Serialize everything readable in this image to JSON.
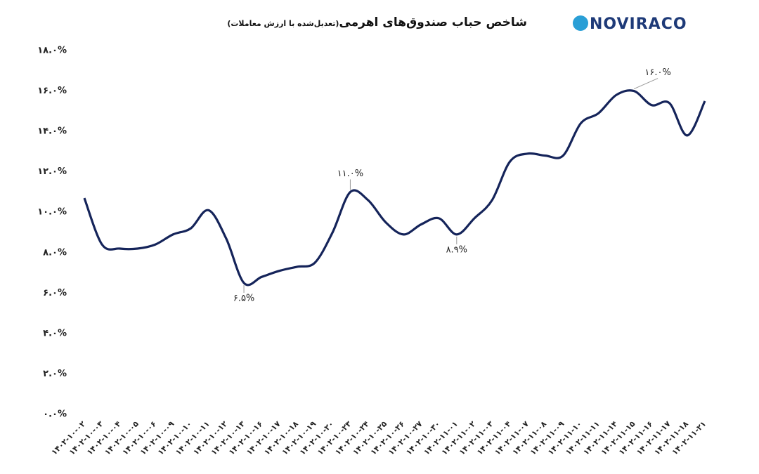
{
  "chart_data": {
    "type": "line",
    "title": "شاخص حباب صندوق‌های اهرمی",
    "subtitle": "(تعدیل‌شده با ارزش معاملات)",
    "logo": "NOVIRACO",
    "categories": [
      "۱۴۰۲-۱۰-۰۲",
      "۱۴۰۲-۱۰-۰۳",
      "۱۴۰۲-۱۰-۰۴",
      "۱۴۰۲-۱۰-۰۵",
      "۱۴۰۲-۱۰-۰۶",
      "۱۴۰۲-۱۰-۰۹",
      "۱۴۰۲-۱۰-۱۰",
      "۱۴۰۲-۱۰-۱۱",
      "۱۴۰۲-۱۰-۱۲",
      "۱۴۰۲-۱۰-۱۳",
      "۱۴۰۲-۱۰-۱۶",
      "۱۴۰۲-۱۰-۱۷",
      "۱۴۰۲-۱۰-۱۸",
      "۱۴۰۲-۱۰-۱۹",
      "۱۴۰۲-۱۰-۲۰",
      "۱۴۰۲-۱۰-۲۳",
      "۱۴۰۲-۱۰-۲۴",
      "۱۴۰۲-۱۰-۲۵",
      "۱۴۰۲-۱۰-۲۶",
      "۱۴۰۲-۱۰-۲۷",
      "۱۴۰۲-۱۰-۳۰",
      "۱۴۰۲-۱۱-۰۱",
      "۱۴۰۲-۱۱-۰۲",
      "۱۴۰۲-۱۱-۰۳",
      "۱۴۰۲-۱۱-۰۴",
      "۱۴۰۲-۱۱-۰۷",
      "۱۴۰۲-۱۱-۰۸",
      "۱۴۰۲-۱۱-۰۹",
      "۱۴۰۲-۱۱-۱۰",
      "۱۴۰۲-۱۱-۱۱",
      "۱۴۰۲-۱۱-۱۴",
      "۱۴۰۲-۱۱-۱۵",
      "۱۴۰۲-۱۱-۱۶",
      "۱۴۰۲-۱۱-۱۷",
      "۱۴۰۲-۱۱-۱۸",
      "۱۴۰۲-۱۱-۲۱"
    ],
    "series": [
      {
        "color": "#15245a",
        "values": [
          10.7,
          8.4,
          8.2,
          8.2,
          8.4,
          8.9,
          9.2,
          10.1,
          8.7,
          6.5,
          6.8,
          7.1,
          7.3,
          7.5,
          9.0,
          11.0,
          10.6,
          9.5,
          8.9,
          9.4,
          9.7,
          8.9,
          9.7,
          10.6,
          12.5,
          12.9,
          12.8,
          12.8,
          14.4,
          14.9,
          15.8,
          16.0,
          15.3,
          15.4,
          13.8,
          15.5
        ],
        "value_labels": [
          null,
          null,
          null,
          null,
          null,
          null,
          null,
          null,
          null,
          "۶.۵%",
          null,
          null,
          null,
          null,
          null,
          "۱۱.۰%",
          null,
          null,
          null,
          null,
          null,
          "۸.۹%",
          null,
          null,
          null,
          null,
          null,
          null,
          null,
          null,
          null,
          "۱۶.۰%",
          null,
          null,
          null,
          null
        ]
      }
    ],
    "ylim": [
      0,
      18
    ],
    "yticks": [
      {
        "value": 0,
        "label": "۰.۰%"
      },
      {
        "value": 2,
        "label": "۲.۰%"
      },
      {
        "value": 4,
        "label": "۴.۰%"
      },
      {
        "value": 6,
        "label": "۶.۰%"
      },
      {
        "value": 8,
        "label": "۸.۰%"
      },
      {
        "value": 10,
        "label": "۱۰.۰%"
      },
      {
        "value": 12,
        "label": "۱۲.۰%"
      },
      {
        "value": 14,
        "label": "۱۴.۰%"
      },
      {
        "value": 16,
        "label": "۱۶.۰%"
      },
      {
        "value": 18,
        "label": "۱۸.۰%"
      }
    ],
    "grid": false
  }
}
